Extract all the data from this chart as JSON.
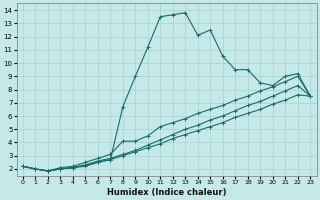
{
  "title": "",
  "xlabel": "Humidex (Indice chaleur)",
  "bg_color": "#c5e8e8",
  "line_color": "#1a6b6b",
  "grid_color": "#aad0d0",
  "xlim": [
    -0.5,
    23.5
  ],
  "ylim": [
    1.5,
    14.5
  ],
  "xticks": [
    0,
    1,
    2,
    3,
    4,
    5,
    6,
    7,
    8,
    9,
    10,
    11,
    12,
    13,
    14,
    15,
    16,
    17,
    18,
    19,
    20,
    21,
    22,
    23
  ],
  "yticks": [
    2,
    3,
    4,
    5,
    6,
    7,
    8,
    9,
    10,
    11,
    12,
    13,
    14
  ],
  "lines": [
    {
      "x": [
        0,
        1,
        2,
        3,
        4,
        5,
        6,
        7,
        8,
        9,
        10,
        11,
        12,
        13,
        14,
        15,
        16,
        17,
        18,
        19,
        20,
        21,
        22,
        23
      ],
      "y": [
        2.2,
        2.0,
        1.85,
        2.0,
        2.1,
        2.2,
        2.5,
        2.7,
        6.7,
        9.0,
        11.2,
        13.5,
        13.65,
        13.8,
        12.1,
        12.5,
        10.5,
        9.5,
        9.5,
        8.5,
        8.3,
        9.0,
        9.2,
        7.5
      ]
    },
    {
      "x": [
        0,
        1,
        2,
        3,
        4,
        5,
        6,
        7,
        8,
        9,
        10,
        11,
        12,
        13,
        14,
        15,
        16,
        17,
        18,
        19,
        20,
        21,
        22,
        23
      ],
      "y": [
        2.2,
        2.0,
        1.85,
        2.1,
        2.2,
        2.5,
        2.8,
        3.1,
        4.1,
        4.1,
        4.5,
        5.2,
        5.5,
        5.8,
        6.2,
        6.5,
        6.8,
        7.2,
        7.5,
        7.9,
        8.2,
        8.6,
        9.0,
        7.5
      ]
    },
    {
      "x": [
        0,
        1,
        2,
        3,
        4,
        5,
        6,
        7,
        8,
        9,
        10,
        11,
        12,
        13,
        14,
        15,
        16,
        17,
        18,
        19,
        20,
        21,
        22,
        23
      ],
      "y": [
        2.2,
        2.0,
        1.85,
        2.0,
        2.1,
        2.3,
        2.6,
        2.8,
        3.1,
        3.4,
        3.8,
        4.2,
        4.6,
        5.0,
        5.3,
        5.7,
        6.0,
        6.4,
        6.8,
        7.1,
        7.5,
        7.9,
        8.3,
        7.5
      ]
    },
    {
      "x": [
        0,
        1,
        2,
        3,
        4,
        5,
        6,
        7,
        8,
        9,
        10,
        11,
        12,
        13,
        14,
        15,
        16,
        17,
        18,
        19,
        20,
        21,
        22,
        23
      ],
      "y": [
        2.2,
        2.0,
        1.85,
        2.0,
        2.1,
        2.3,
        2.5,
        2.7,
        3.0,
        3.3,
        3.6,
        3.9,
        4.3,
        4.6,
        4.9,
        5.2,
        5.5,
        5.9,
        6.2,
        6.5,
        6.9,
        7.2,
        7.6,
        7.5
      ]
    }
  ]
}
